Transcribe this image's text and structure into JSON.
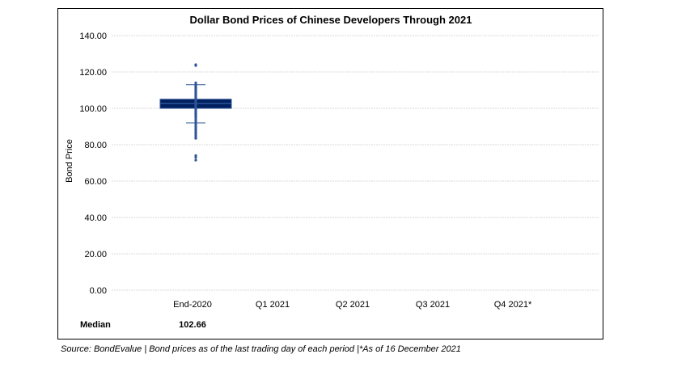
{
  "chart_data": {
    "type": "box",
    "title": "Dollar Bond Prices of Chinese Developers Through 2021",
    "ylabel": "Bond Price",
    "xlabel": "",
    "ylim": [
      0,
      140
    ],
    "yticks": [
      "0.00",
      "20.00",
      "40.00",
      "60.00",
      "80.00",
      "100.00",
      "120.00",
      "140.00"
    ],
    "yticks_values": [
      0,
      20,
      40,
      60,
      80,
      100,
      120,
      140
    ],
    "categories": [
      "End-2020",
      "Q1 2021",
      "Q2 2021",
      "Q3 2021",
      "Q4 2021*"
    ],
    "grid": true,
    "colors": {
      "box_fill": "#002060",
      "box_edge": "#2e5597",
      "points": "#2f5597",
      "grid": "#d9d9d9"
    },
    "boxes": [
      {
        "category": "End-2020",
        "q1": 100.0,
        "median": 102.66,
        "q3": 105.0,
        "whisker_low": 92.0,
        "whisker_high": 113.0,
        "points": [
          124,
          123.5,
          114,
          113,
          112.5,
          112,
          111.5,
          111,
          110.5,
          110,
          109.5,
          109,
          108.5,
          108,
          107.5,
          107,
          106.5,
          106,
          105.5,
          105,
          104.5,
          104,
          103.5,
          103,
          102.5,
          102,
          101.5,
          101,
          100.5,
          100,
          99.5,
          99,
          98.5,
          98,
          97.5,
          97,
          96.5,
          96,
          95.5,
          95,
          94,
          93,
          92,
          91,
          90,
          89,
          88,
          87,
          86,
          85,
          84,
          83.5,
          74,
          73,
          71.5
        ]
      }
    ],
    "median_row": {
      "label": "Median",
      "values": [
        "102.66",
        "",
        "",
        "",
        ""
      ]
    }
  },
  "source_note": "Source: BondEvalue | Bond prices as of the last trading day of each period |*As of 16 December 2021"
}
